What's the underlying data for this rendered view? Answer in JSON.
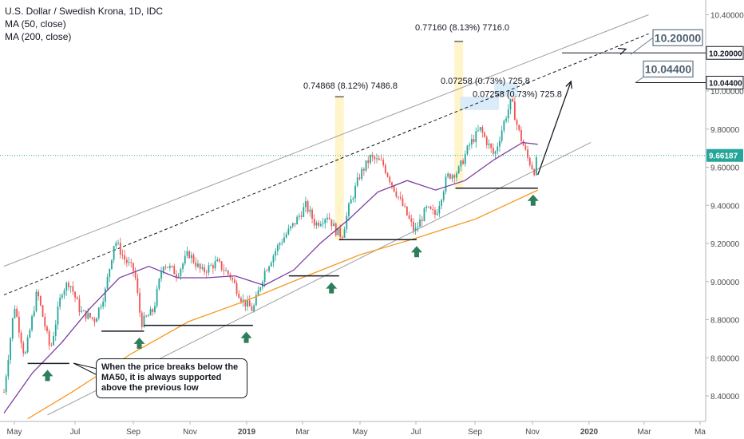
{
  "legend": {
    "title": "U.S. Dollar / Swedish Krona, 1D, IDC",
    "ma50": "MA (50, close)",
    "ma200": "MA (200, close)"
  },
  "note": "When the price breaks below the MA50, it is always supported above the previous low",
  "colors": {
    "up": "#26a69a",
    "down": "#ef5350",
    "ma50": "#7b3fa0",
    "ma200": "#f59a23",
    "current_line": "#26a69a",
    "highlight": "#fff3c4",
    "target_box": "#d6eaf8",
    "arrow_up": "#2e7d5b",
    "channel": "#9e9e9e"
  },
  "chart_data": {
    "type": "candlestick",
    "x_ticks": [
      "May",
      "Jul",
      "Sep",
      "Nov",
      "2019",
      "Mar",
      "May",
      "Jul",
      "Sep",
      "Nov",
      "2020",
      "Mar",
      "Ma"
    ],
    "y_ticks": [
      "8.40000",
      "8.60000",
      "8.80000",
      "9.00000",
      "9.20000",
      "9.40000",
      "9.60000",
      "9.80000",
      "10.00000",
      "10.40000"
    ],
    "ylim": [
      8.28,
      10.5
    ],
    "tagged_prices": [
      {
        "label": "10.20000",
        "value": 10.2
      },
      {
        "label": "10.04400",
        "value": 10.044
      }
    ],
    "current_price": {
      "label": "9.66187",
      "value": 9.66187
    },
    "callouts": [
      "10.20000",
      "10.04400"
    ],
    "measurements": [
      {
        "label": "0.74868 (8.12%) 7486.8",
        "from_date": "2019-04-09",
        "to_date": "2019-04-09",
        "from": 9.22,
        "to": 9.97
      },
      {
        "label": "0.77160 (8.13%) 7716.0",
        "from_date": "2019-08-13",
        "to_date": "2019-08-13",
        "from": 9.49,
        "to": 10.26
      },
      {
        "label": "0.07258 (0.73%) 725.8",
        "from_date": "2019-08-15",
        "to_date": "2019-09-25",
        "from": 9.9,
        "to": 9.97
      },
      {
        "label": "0.07258 (0.73%) 725.8",
        "from_date": "2019-09-20",
        "to_date": "2019-10-15",
        "from": 9.97,
        "to": 10.044
      }
    ],
    "support_lows": [
      {
        "from": "2018-05-15",
        "to": "2018-06-28",
        "value": 8.57
      },
      {
        "from": "2018-08-01",
        "to": "2018-09-15",
        "value": 8.74
      },
      {
        "from": "2018-09-15",
        "to": "2019-01-08",
        "value": 8.77
      },
      {
        "from": "2019-02-15",
        "to": "2019-04-09",
        "value": 9.03
      },
      {
        "from": "2019-04-09",
        "to": "2019-06-30",
        "value": 9.22
      },
      {
        "from": "2019-08-10",
        "to": "2019-11-05",
        "value": 9.49
      }
    ],
    "arrows": [
      "2018-06-05",
      "2018-09-10",
      "2019-01-01",
      "2019-04-01",
      "2019-06-30",
      "2019-10-31"
    ],
    "projection": [
      {
        "date": "2019-11-05",
        "value": 9.56
      },
      {
        "date": "2019-12-10",
        "value": 10.05
      }
    ],
    "channel": {
      "lower": [
        {
          "date": "2018-06-05",
          "value": 8.3
        },
        {
          "date": "2019-12-31",
          "value": 9.73
        }
      ],
      "upper": [
        {
          "date": "2018-04-20",
          "value": 9.08
        },
        {
          "date": "2020-03-01",
          "value": 10.4
        }
      ],
      "mid_dashed": [
        {
          "date": "2018-04-20",
          "value": 8.93
        },
        {
          "date": "2020-03-01",
          "value": 10.3
        }
      ]
    },
    "ma50": [
      {
        "date": "2018-04-20",
        "value": 8.31
      },
      {
        "date": "2018-05-20",
        "value": 8.52
      },
      {
        "date": "2018-06-20",
        "value": 8.68
      },
      {
        "date": "2018-07-20",
        "value": 8.86
      },
      {
        "date": "2018-08-20",
        "value": 9.02
      },
      {
        "date": "2018-09-20",
        "value": 9.08
      },
      {
        "date": "2018-10-20",
        "value": 9.02
      },
      {
        "date": "2018-11-20",
        "value": 9.02
      },
      {
        "date": "2018-12-20",
        "value": 9.03
      },
      {
        "date": "2019-01-20",
        "value": 8.98
      },
      {
        "date": "2019-02-20",
        "value": 9.06
      },
      {
        "date": "2019-03-20",
        "value": 9.2
      },
      {
        "date": "2019-04-20",
        "value": 9.33
      },
      {
        "date": "2019-05-20",
        "value": 9.47
      },
      {
        "date": "2019-06-20",
        "value": 9.53
      },
      {
        "date": "2019-07-20",
        "value": 9.48
      },
      {
        "date": "2019-08-20",
        "value": 9.53
      },
      {
        "date": "2019-09-20",
        "value": 9.64
      },
      {
        "date": "2019-10-20",
        "value": 9.73
      },
      {
        "date": "2019-11-05",
        "value": 9.72
      }
    ],
    "ma200": [
      {
        "date": "2018-05-15",
        "value": 8.28
      },
      {
        "date": "2018-07-01",
        "value": 8.42
      },
      {
        "date": "2018-09-01",
        "value": 8.62
      },
      {
        "date": "2018-11-01",
        "value": 8.79
      },
      {
        "date": "2019-01-01",
        "value": 8.9
      },
      {
        "date": "2019-03-01",
        "value": 9.02
      },
      {
        "date": "2019-05-01",
        "value": 9.14
      },
      {
        "date": "2019-07-01",
        "value": 9.23
      },
      {
        "date": "2019-09-01",
        "value": 9.33
      },
      {
        "date": "2019-11-05",
        "value": 9.48
      }
    ],
    "price_path": [
      {
        "date": "2018-04-20",
        "value": 8.42
      },
      {
        "date": "2018-05-01",
        "value": 8.88
      },
      {
        "date": "2018-05-12",
        "value": 8.6
      },
      {
        "date": "2018-05-25",
        "value": 8.95
      },
      {
        "date": "2018-06-08",
        "value": 8.64
      },
      {
        "date": "2018-06-20",
        "value": 8.95
      },
      {
        "date": "2018-06-28",
        "value": 9.0
      },
      {
        "date": "2018-07-10",
        "value": 8.84
      },
      {
        "date": "2018-07-25",
        "value": 8.8
      },
      {
        "date": "2018-08-05",
        "value": 8.95
      },
      {
        "date": "2018-08-15",
        "value": 9.22
      },
      {
        "date": "2018-08-25",
        "value": 9.12
      },
      {
        "date": "2018-09-05",
        "value": 9.05
      },
      {
        "date": "2018-09-12",
        "value": 8.78
      },
      {
        "date": "2018-09-25",
        "value": 8.85
      },
      {
        "date": "2018-10-05",
        "value": 9.1
      },
      {
        "date": "2018-10-20",
        "value": 9.04
      },
      {
        "date": "2018-11-01",
        "value": 9.15
      },
      {
        "date": "2018-11-15",
        "value": 9.05
      },
      {
        "date": "2018-12-01",
        "value": 9.1
      },
      {
        "date": "2018-12-15",
        "value": 9.03
      },
      {
        "date": "2018-12-28",
        "value": 8.9
      },
      {
        "date": "2019-01-08",
        "value": 8.85
      },
      {
        "date": "2019-01-20",
        "value": 9.05
      },
      {
        "date": "2019-02-05",
        "value": 9.2
      },
      {
        "date": "2019-02-20",
        "value": 9.3
      },
      {
        "date": "2019-03-05",
        "value": 9.4
      },
      {
        "date": "2019-03-15",
        "value": 9.3
      },
      {
        "date": "2019-03-28",
        "value": 9.35
      },
      {
        "date": "2019-04-05",
        "value": 9.27
      },
      {
        "date": "2019-04-12",
        "value": 9.24
      },
      {
        "date": "2019-04-20",
        "value": 9.4
      },
      {
        "date": "2019-05-01",
        "value": 9.56
      },
      {
        "date": "2019-05-12",
        "value": 9.65
      },
      {
        "date": "2019-05-25",
        "value": 9.62
      },
      {
        "date": "2019-06-05",
        "value": 9.5
      },
      {
        "date": "2019-06-15",
        "value": 9.4
      },
      {
        "date": "2019-06-28",
        "value": 9.26
      },
      {
        "date": "2019-07-10",
        "value": 9.38
      },
      {
        "date": "2019-07-20",
        "value": 9.35
      },
      {
        "date": "2019-08-01",
        "value": 9.55
      },
      {
        "date": "2019-08-13",
        "value": 9.58
      },
      {
        "date": "2019-08-25",
        "value": 9.72
      },
      {
        "date": "2019-09-05",
        "value": 9.8
      },
      {
        "date": "2019-09-20",
        "value": 9.66
      },
      {
        "date": "2019-10-01",
        "value": 9.85
      },
      {
        "date": "2019-10-08",
        "value": 9.95
      },
      {
        "date": "2019-10-15",
        "value": 9.8
      },
      {
        "date": "2019-10-25",
        "value": 9.65
      },
      {
        "date": "2019-11-01",
        "value": 9.58
      },
      {
        "date": "2019-11-05",
        "value": 9.66187
      }
    ]
  }
}
